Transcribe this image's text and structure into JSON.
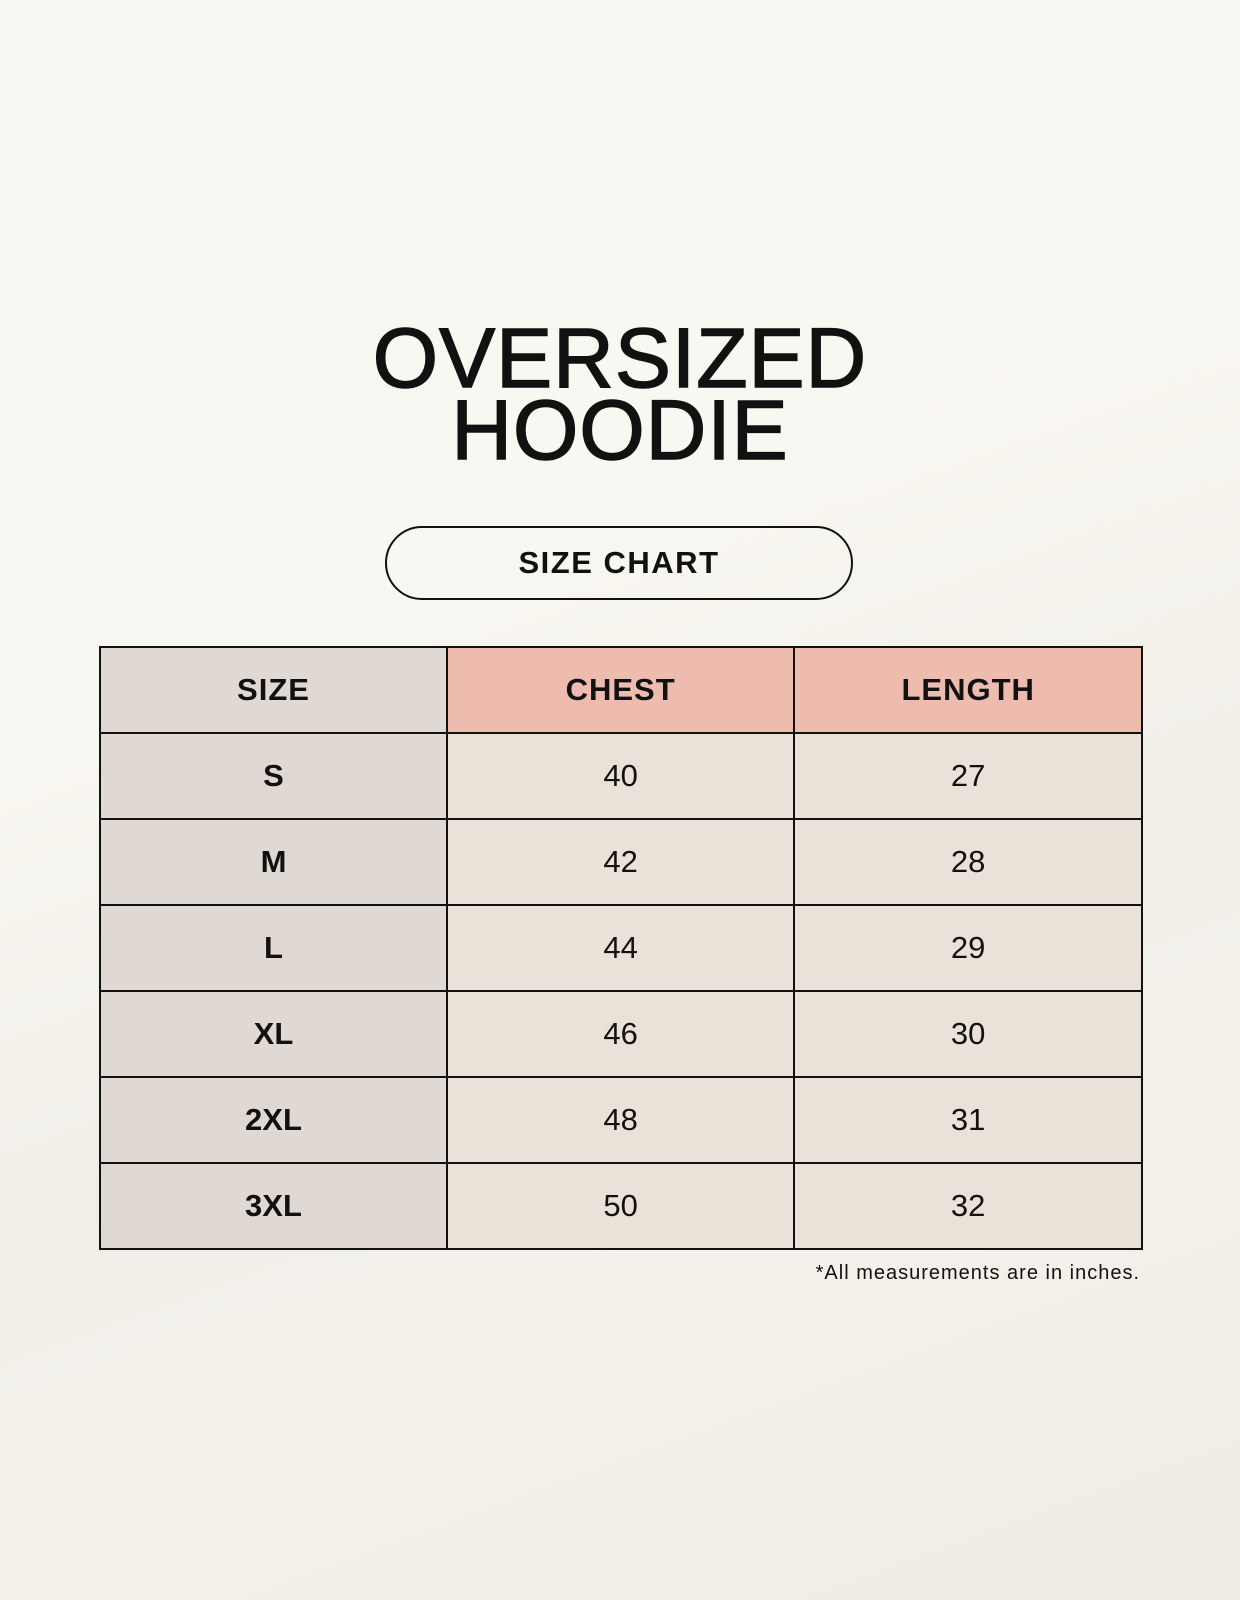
{
  "title_line1": "OVERSIZED",
  "title_line2": "HOODIE",
  "badge": "SIZE CHART",
  "colors": {
    "size_column": "#e0d9d3",
    "header_accent": "#edbcae",
    "value_cells": "#eae2d8"
  },
  "table": {
    "headers": [
      "SIZE",
      "CHEST",
      "LENGTH"
    ],
    "rows": [
      [
        "S",
        "40",
        "27"
      ],
      [
        "M",
        "42",
        "28"
      ],
      [
        "L",
        "44",
        "29"
      ],
      [
        "XL",
        "46",
        "30"
      ],
      [
        "2XL",
        "48",
        "31"
      ],
      [
        "3XL",
        "50",
        "32"
      ]
    ]
  },
  "footnote": "*All measurements are in inches."
}
